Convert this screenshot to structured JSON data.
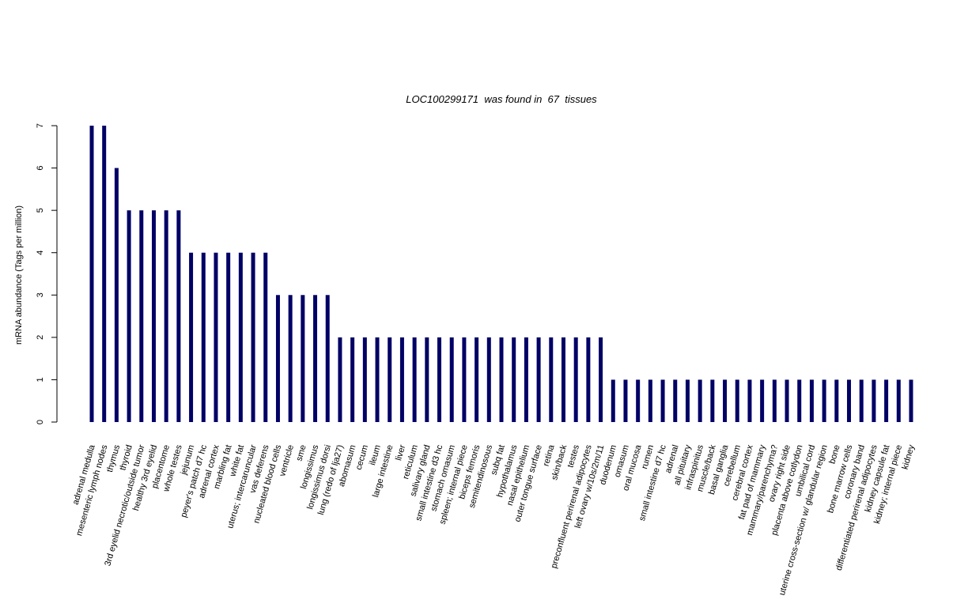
{
  "chart_data": {
    "type": "bar",
    "title": "LOC100299171  was found in  67  tissues",
    "y_label": "mRNA abundance (Tags per million)",
    "color": "#000066",
    "ylim": [
      0,
      7
    ],
    "yticks": [
      0,
      1,
      2,
      3,
      4,
      5,
      6,
      7
    ],
    "categories": [
      "adrenal medulla",
      "mesenteric lymph nodes",
      "thymus",
      "thyroid",
      "3rd eyelid necrotic/outside tumor",
      "healthy 3rd eyelid",
      "placentome",
      "whole testes",
      "jejunum",
      "peyer's patch d7 hc",
      "adrenal cortex",
      "marbling fat",
      "white fat",
      "uterus; intercaruncular",
      "vas deferens",
      "nucleated blood cells",
      "ventricle",
      "sme",
      "longissimus",
      "longissimus dorsi",
      "lung (redo of lja27)",
      "abomasum",
      "cecum",
      "ileum",
      "large intestine",
      "liver",
      "reticulum",
      "salivary gland",
      "small intestine d3 hc",
      "stomach omasum",
      "spleen; internal piece",
      "biceps femoris",
      "semitendinosous",
      "subq fat",
      "hypothalamus",
      "nasal epithelium",
      "outer tongue surface",
      "retina",
      "skin/back",
      "testes",
      "preconfluent perirenal adipocytes",
      "left ovary w/10s/2m/11",
      "duodenum",
      "omasum",
      "oral mucosa",
      "rumen",
      "small intestine d7 hc",
      "adrenal",
      "all pituitary",
      "infraspinitus",
      "muscle/back",
      "basal ganglia",
      "cerebellum",
      "cerebral cortex",
      "fat pad of mammary",
      "mammary/parenchyma?",
      "ovary right side",
      "placenta above cotlydon",
      "umbilical cord",
      "uterine cross-section w/ glandular region",
      "bone",
      "bone marrow cells",
      "coronary band",
      "differentiated perirenal adipocytes",
      "kidney capsule fat",
      "kidney; internal piece",
      "kidney"
    ],
    "values": [
      7,
      7,
      6,
      5,
      5,
      5,
      5,
      5,
      4,
      4,
      4,
      4,
      4,
      4,
      4,
      3,
      3,
      3,
      3,
      3,
      2,
      2,
      2,
      2,
      2,
      2,
      2,
      2,
      2,
      2,
      2,
      2,
      2,
      2,
      2,
      2,
      2,
      2,
      2,
      2,
      2,
      2,
      1,
      1,
      1,
      1,
      1,
      1,
      1,
      1,
      1,
      1,
      1,
      1,
      1,
      1,
      1,
      1,
      1,
      1,
      1,
      1,
      1,
      1,
      1,
      1,
      1
    ]
  }
}
